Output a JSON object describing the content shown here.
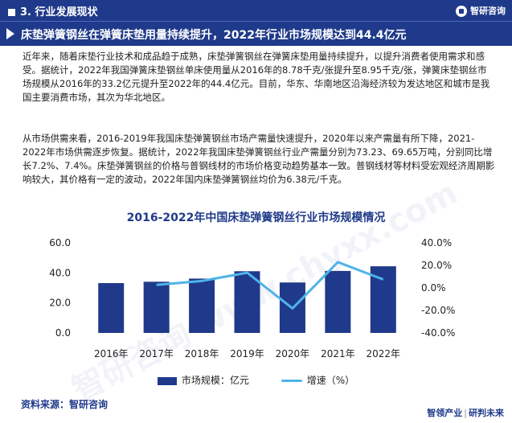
{
  "header": {
    "section_title": "3. 行业发展现状",
    "brand": "智研咨询"
  },
  "headline": "床垫弹簧钢丝在弹簧床垫用量持续提升，2022年行业市场规模达到44.4亿元",
  "paragraphs": [
    "近年来，随着床垫行业技术和成品趋于成熟，床垫弹簧钢丝在弹簧床垫用量持续提升，以提升消费者使用需求和感受。据统计，2022年我国弹簧床垫钢丝单床使用量从2016年的8.78千克/张提升至8.95千克/张，弹簧床垫钢丝市场规模从2016年的33.2亿元提升至2022年的44.4亿元。目前，华东、华南地区沿海经济较为发达地区和城市是我国主要消费市场，其次为华北地区。",
    "从市场供需来看，2016-2019年我国床垫弹簧钢丝市场产需量快速提升，2020年以来产需量有所下降，2021-2022年市场供需逐步恢复。据统计，2022年我国床垫弹簧钢丝行业产需量分别为73.23、69.65万吨，分别同比增长7.2%、7.4%。床垫弹簧钢丝的价格与普钢线材的市场价格变动趋势基本一致。普钢线材等材料受宏观经济周期影响较大，其价格有一定的波动，2022年国内床垫弹簧钢丝均价为6.38元/千克。"
  ],
  "chart_data": {
    "type": "bar",
    "title": "2016-2022年中国床垫弹簧钢丝行业市场规模情况",
    "categories": [
      "2016年",
      "2017年",
      "2018年",
      "2019年",
      "2020年",
      "2021年",
      "2022年"
    ],
    "series": [
      {
        "name": "市场规模：亿元",
        "type": "bar",
        "axis": "left",
        "values": [
          33.2,
          34.1,
          36.2,
          41.1,
          33.6,
          41.3,
          44.4
        ]
      },
      {
        "name": "增速（%）",
        "type": "line",
        "axis": "right",
        "values": [
          null,
          2.7,
          6.2,
          13.5,
          -18.2,
          22.9,
          7.5
        ]
      }
    ],
    "y_left": {
      "min": 0,
      "max": 60,
      "ticks": [
        "0.0",
        "20.0",
        "40.0",
        "60.0"
      ]
    },
    "y_right": {
      "min": -40,
      "max": 40,
      "ticks": [
        "-40.0%",
        "-20.0%",
        "0.0%",
        "20.0%",
        "40.0%"
      ]
    },
    "legend_position": "bottom",
    "grid": false,
    "colors": {
      "bar": "#1f3a8a",
      "line": "#4fb3e8"
    }
  },
  "source": "资料来源：智研咨询",
  "footer": {
    "left": "智领产业",
    "right": "研判未来"
  },
  "watermark": "智研咨询 www.chyxx.com"
}
